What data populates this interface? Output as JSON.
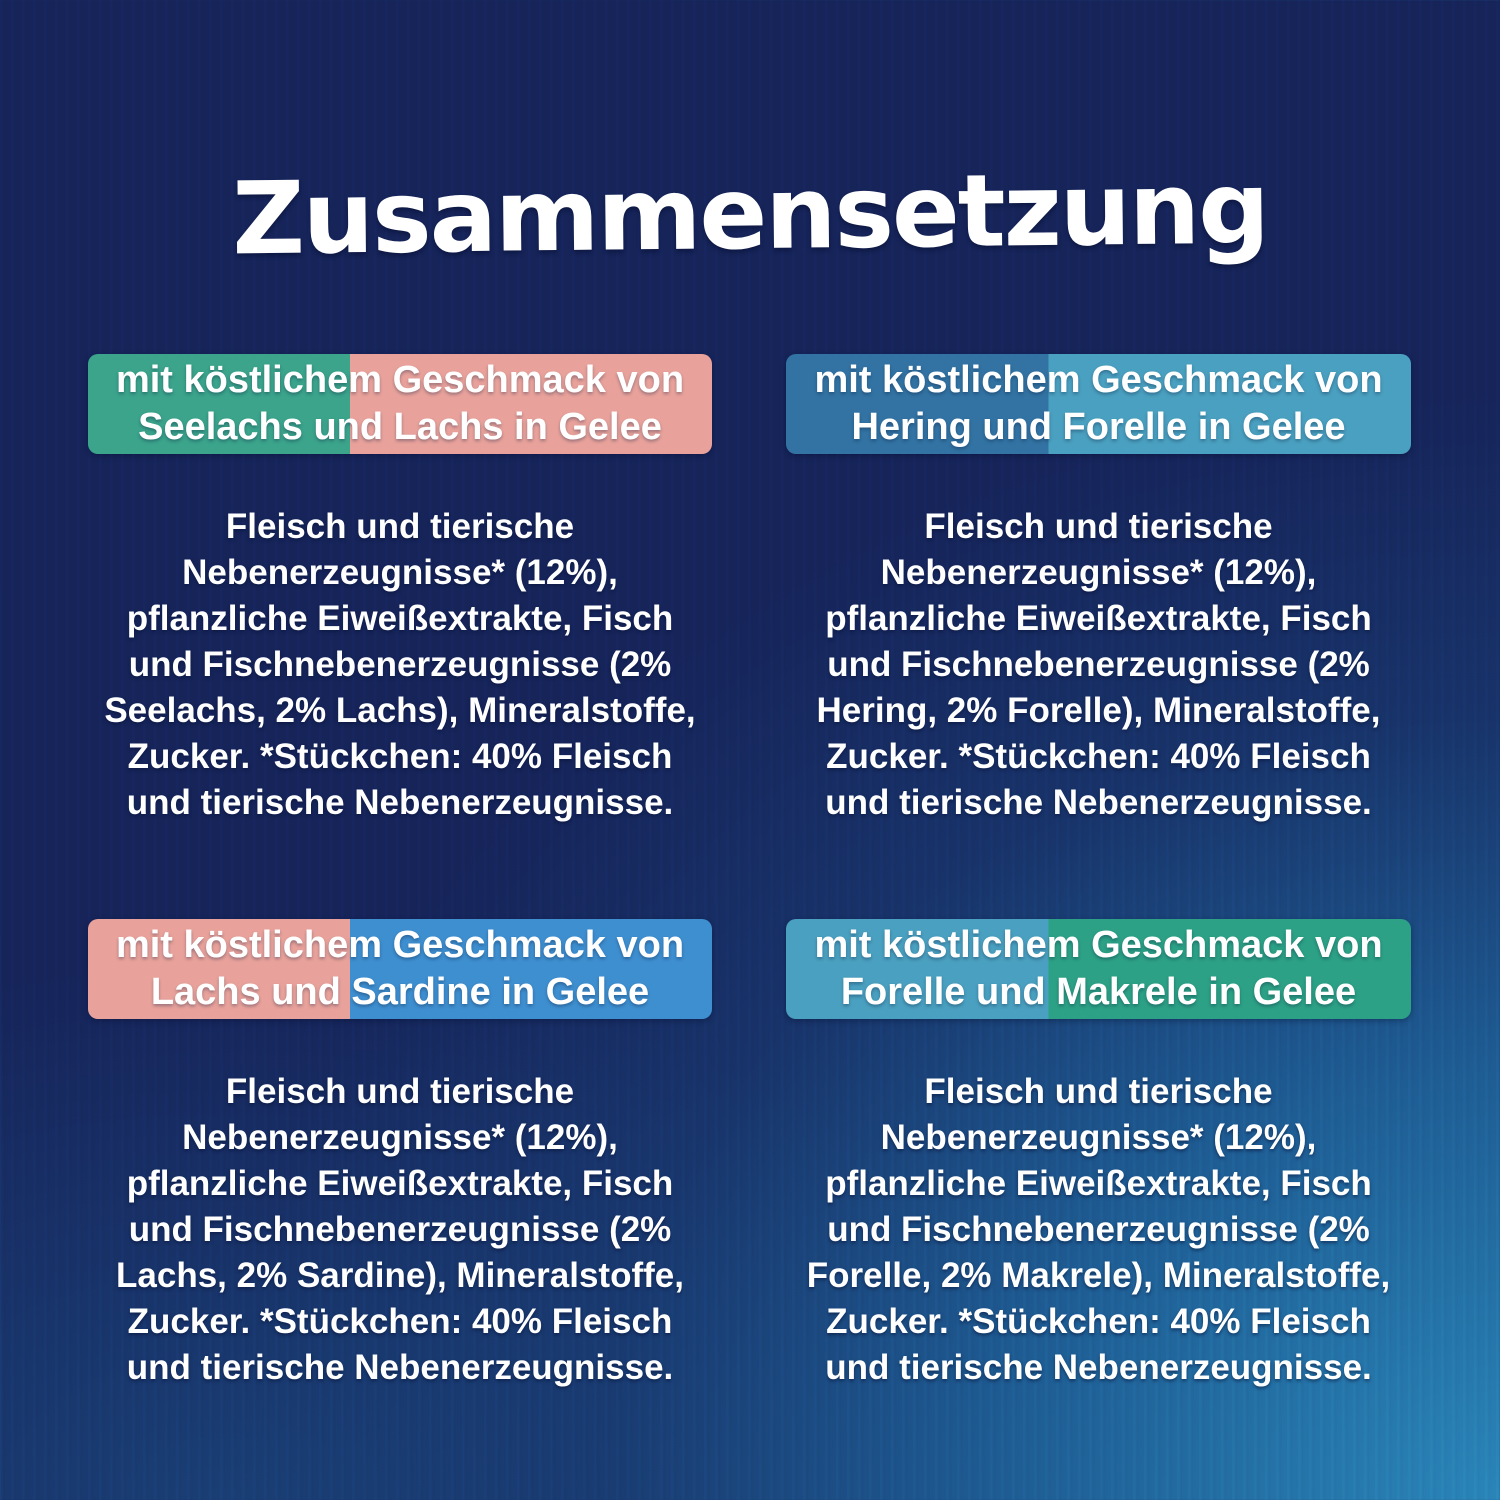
{
  "page": {
    "title": "Zusammensetzung",
    "background": {
      "dark": "#16245A",
      "light": "#2B8ABD"
    }
  },
  "cards": [
    {
      "position": "top-left",
      "banner": {
        "line1": "mit köstlichem Geschmack von",
        "line2": "Seelachs und Lachs in Gelee",
        "left_color": "#3BA48B",
        "right_color": "#E9A29B",
        "split_pct": 42
      },
      "body_lines": [
        "Fleisch und tierische",
        "Nebenerzeugnisse* (12%),",
        "pflanzliche Eiweißextrakte, Fisch",
        "und Fischnebenerzeugnisse (2%",
        "Seelachs, 2% Lachs), Mineralstoffe,",
        "Zucker. *Stückchen: 40% Fleisch",
        "und tierische Nebenerzeugnisse."
      ]
    },
    {
      "position": "top-right",
      "banner": {
        "line1": "mit köstlichem Geschmack von",
        "line2": "Hering und Forelle in Gelee",
        "left_color": "#3273A3",
        "right_color": "#4AA0C0",
        "split_pct": 42
      },
      "body_lines": [
        "Fleisch und tierische",
        "Nebenerzeugnisse* (12%),",
        "pflanzliche Eiweißextrakte, Fisch",
        "und Fischnebenerzeugnisse (2%",
        "Hering, 2% Forelle), Mineralstoffe,",
        "Zucker. *Stückchen: 40% Fleisch",
        "und tierische Nebenerzeugnisse."
      ]
    },
    {
      "position": "bottom-left",
      "banner": {
        "line1": "mit köstlichem Geschmack von",
        "line2": "Lachs und Sardine in Gelee",
        "left_color": "#E9A29B",
        "right_color": "#3E8FD0",
        "split_pct": 42
      },
      "body_lines": [
        "Fleisch und tierische",
        "Nebenerzeugnisse* (12%),",
        "pflanzliche Eiweißextrakte, Fisch",
        "und Fischnebenerzeugnisse (2%",
        "Lachs, 2% Sardine), Mineralstoffe,",
        "Zucker. *Stückchen: 40% Fleisch",
        "und tierische Nebenerzeugnisse."
      ]
    },
    {
      "position": "bottom-right",
      "banner": {
        "line1": "mit köstlichem Geschmack von",
        "line2": "Forelle und Makrele in Gelee",
        "left_color": "#4AA0C0",
        "right_color": "#2CA185",
        "split_pct": 42
      },
      "body_lines": [
        "Fleisch und tierische",
        "Nebenerzeugnisse* (12%),",
        "pflanzliche Eiweißextrakte, Fisch",
        "und Fischnebenerzeugnisse (2%",
        "Forelle, 2% Makrele), Mineralstoffe,",
        "Zucker. *Stückchen: 40% Fleisch",
        "und tierische Nebenerzeugnisse."
      ]
    }
  ]
}
